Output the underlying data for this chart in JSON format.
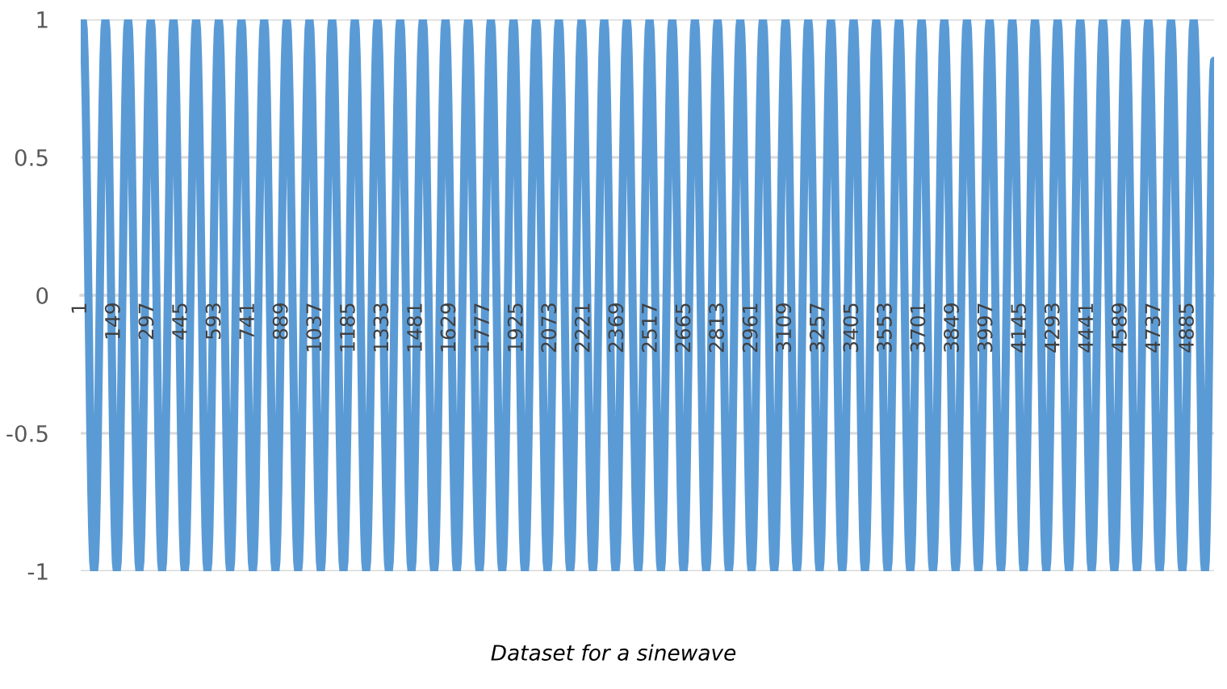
{
  "chart_data": {
    "type": "line",
    "x": [
      1,
      10,
      60,
      110,
      160,
      210,
      260,
      310,
      360,
      410,
      460,
      510,
      560,
      610,
      660,
      710,
      760,
      810,
      860,
      910,
      960,
      1010,
      1060,
      1110,
      1160,
      1210,
      1260,
      1310,
      1360,
      1410,
      1460,
      1510,
      1560,
      1610,
      1660,
      1710,
      1760,
      1810,
      1860,
      1910,
      1960,
      2010,
      2060,
      2110,
      2160,
      2210,
      2260,
      2310,
      2360,
      2410,
      2460,
      2510,
      2560,
      2610,
      2660,
      2710,
      2760,
      2810,
      2860,
      2910,
      2960,
      3010,
      3060,
      3110,
      3160,
      3210,
      3260,
      3310,
      3360,
      3410,
      3460,
      3510,
      3560,
      3610,
      3660,
      3710,
      3760,
      3810,
      3860,
      3910,
      3960,
      4010,
      4060,
      4110,
      4160,
      4210,
      4260,
      4310,
      4360,
      4410,
      4460,
      4510,
      4560,
      4610,
      4660,
      4710,
      4760,
      4810,
      4860,
      4910,
      4960,
      5000
    ],
    "series": [
      {
        "color": "#5b9bd5",
        "values": [
          0.85,
          1,
          -1,
          1,
          -1,
          1,
          -1,
          1,
          -1,
          1,
          -1,
          1,
          -1,
          1,
          -1,
          1,
          -1,
          1,
          -1,
          1,
          -1,
          1,
          -1,
          1,
          -1,
          1,
          -1,
          1,
          -1,
          1,
          -1,
          1,
          -1,
          1,
          -1,
          1,
          -1,
          1,
          -1,
          1,
          -1,
          1,
          -1,
          1,
          -1,
          1,
          -1,
          1,
          -1,
          1,
          -1,
          1,
          -1,
          1,
          -1,
          1,
          -1,
          1,
          -1,
          1,
          -1,
          1,
          -1,
          1,
          -1,
          1,
          -1,
          1,
          -1,
          1,
          -1,
          1,
          -1,
          1,
          -1,
          1,
          -1,
          1,
          -1,
          1,
          -1,
          1,
          -1,
          1,
          -1,
          1,
          -1,
          1,
          -1,
          1,
          -1,
          1,
          -1,
          1,
          -1,
          1,
          -1,
          1,
          -1,
          1,
          -1,
          0.85
        ]
      }
    ],
    "xlim": [
      1,
      5000
    ],
    "xticks": [
      1,
      149,
      297,
      445,
      593,
      741,
      889,
      1037,
      1185,
      1333,
      1481,
      1629,
      1777,
      1925,
      2073,
      2221,
      2369,
      2517,
      2665,
      2813,
      2961,
      3109,
      3257,
      3405,
      3553,
      3701,
      3849,
      3997,
      4145,
      4293,
      4441,
      4589,
      4737,
      4885
    ],
    "ylim": [
      -1,
      1
    ],
    "yticks": [
      -1,
      -0.5,
      0,
      0.5,
      1
    ],
    "grid": "y",
    "line_style": "solid",
    "marker": "none",
    "annotations": [
      "Dataset for a sinewave"
    ]
  }
}
